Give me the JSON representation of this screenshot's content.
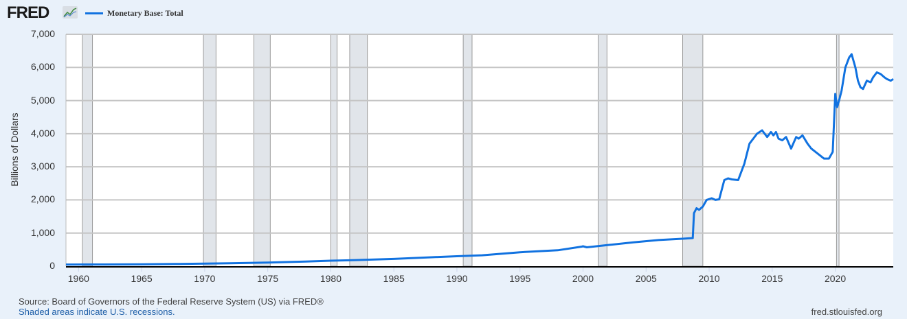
{
  "header": {
    "logo_text": "FRED",
    "logo_icon": "chart-line-icon",
    "legend_label": "Monetary Base: Total",
    "series_color": "#1172e0"
  },
  "footer": {
    "source": "Source: Board of Governors of the Federal Reserve System (US) via FRED®",
    "recession_note": "Shaded areas indicate U.S. recessions.",
    "site": "fred.stlouisfed.org"
  },
  "chart_data": {
    "type": "line",
    "title": "Monetary Base: Total",
    "xlabel": "",
    "ylabel": "Billions of Dollars",
    "ylim": [
      0,
      7000
    ],
    "xlim": [
      1959.0,
      2024.6
    ],
    "grid": true,
    "legend_position": "top-left",
    "y_ticks": [
      "0",
      "1,000",
      "2,000",
      "3,000",
      "4,000",
      "5,000",
      "6,000",
      "7,000"
    ],
    "x_ticks": [
      "1960",
      "1965",
      "1970",
      "1975",
      "1980",
      "1985",
      "1990",
      "1995",
      "2000",
      "2005",
      "2010",
      "2015",
      "2020"
    ],
    "recessions": [
      [
        1960.3,
        1961.1
      ],
      [
        1969.9,
        1970.9
      ],
      [
        1973.9,
        1975.2
      ],
      [
        1980.0,
        1980.5
      ],
      [
        1981.5,
        1982.9
      ],
      [
        1990.5,
        1991.2
      ],
      [
        2001.2,
        2001.9
      ],
      [
        2007.9,
        2009.5
      ],
      [
        2020.1,
        2020.3
      ]
    ],
    "series": [
      {
        "name": "Monetary Base: Total",
        "x": [
          1959.0,
          1962,
          1965,
          1968,
          1970,
          1972,
          1975,
          1978,
          1980,
          1982,
          1985,
          1988,
          1990,
          1992,
          1995,
          1998,
          1999.9,
          2000.0,
          2000.3,
          2002,
          2004,
          2006,
          2008.0,
          2008.7,
          2008.8,
          2009.0,
          2009.2,
          2009.5,
          2009.8,
          2010.2,
          2010.5,
          2010.8,
          2011.2,
          2011.5,
          2011.8,
          2012.3,
          2012.8,
          2013.2,
          2013.8,
          2014.2,
          2014.6,
          2014.9,
          2015.1,
          2015.3,
          2015.5,
          2015.8,
          2016.1,
          2016.5,
          2016.9,
          2017.1,
          2017.4,
          2017.8,
          2018.1,
          2018.6,
          2019.1,
          2019.5,
          2019.8,
          2020.0,
          2020.15,
          2020.3,
          2020.5,
          2020.8,
          2021.1,
          2021.3,
          2021.6,
          2021.8,
          2022.0,
          2022.2,
          2022.5,
          2022.8,
          2023.0,
          2023.3,
          2023.6,
          2023.9,
          2024.1,
          2024.4,
          2024.6
        ],
        "values": [
          50,
          52,
          58,
          68,
          78,
          90,
          110,
          140,
          165,
          185,
          220,
          270,
          300,
          330,
          420,
          480,
          590,
          600,
          570,
          640,
          720,
          790,
          830,
          850,
          1600,
          1750,
          1700,
          1800,
          2000,
          2050,
          2000,
          2020,
          2600,
          2650,
          2620,
          2600,
          3100,
          3700,
          4000,
          4100,
          3900,
          4050,
          3950,
          4050,
          3850,
          3800,
          3900,
          3550,
          3900,
          3850,
          3950,
          3700,
          3550,
          3400,
          3250,
          3250,
          3450,
          5200,
          4800,
          5000,
          5300,
          6000,
          6300,
          6400,
          6000,
          5600,
          5400,
          5350,
          5600,
          5550,
          5700,
          5850,
          5800,
          5700,
          5650,
          5600,
          5650
        ]
      }
    ]
  }
}
